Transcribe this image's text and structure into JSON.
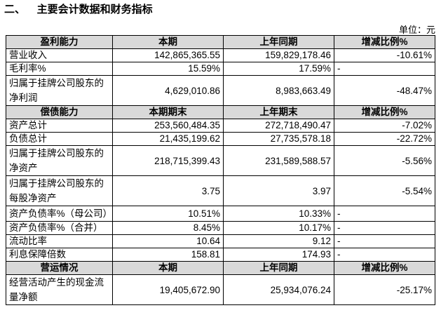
{
  "header": {
    "title": "二、    主要会计数据和财务指标",
    "unit": "单位：元"
  },
  "table": {
    "sections": [
      {
        "header": [
          "盈利能力",
          "本期",
          "上年同期",
          "增减比例%"
        ],
        "rows": [
          [
            "营业收入",
            "142,865,365.55",
            "159,829,178.46",
            "-10.61%"
          ],
          [
            "毛利率%",
            "15.59%",
            "17.59%",
            "-"
          ],
          [
            "归属于挂牌公司股东的净利润",
            "4,629,010.86",
            "8,983,663.49",
            "-48.47%"
          ]
        ]
      },
      {
        "header": [
          "偿债能力",
          "本期期末",
          "上年期末",
          "增减比例%"
        ],
        "rows": [
          [
            "资产总计",
            "253,560,484.35",
            "272,718,490.47",
            "-7.02%"
          ],
          [
            "负债总计",
            "21,435,199.62",
            "27,735,578.18",
            "-22.72%"
          ],
          [
            "归属于挂牌公司股东的净资产",
            "218,715,399.43",
            "231,589,588.57",
            "-5.56%"
          ],
          [
            "归属于挂牌公司股东的每股净资产",
            "3.75",
            "3.97",
            "-5.54%"
          ],
          [
            "资产负债率%（母公司）",
            "10.51%",
            "10.33%",
            "-"
          ],
          [
            "资产负债率%（合并）",
            "8.45%",
            "10.17%",
            "-"
          ],
          [
            "流动比率",
            "10.64",
            "9.12",
            "-"
          ],
          [
            "利息保障倍数",
            "158.81",
            "174.93",
            "-"
          ]
        ]
      },
      {
        "header": [
          "营运情况",
          "本期",
          "上年同期",
          "增减比例%"
        ],
        "rows": [
          [
            "经营活动产生的现金流量净额",
            "19,405,672.90",
            "25,934,076.24",
            "-25.17%"
          ]
        ]
      }
    ]
  }
}
